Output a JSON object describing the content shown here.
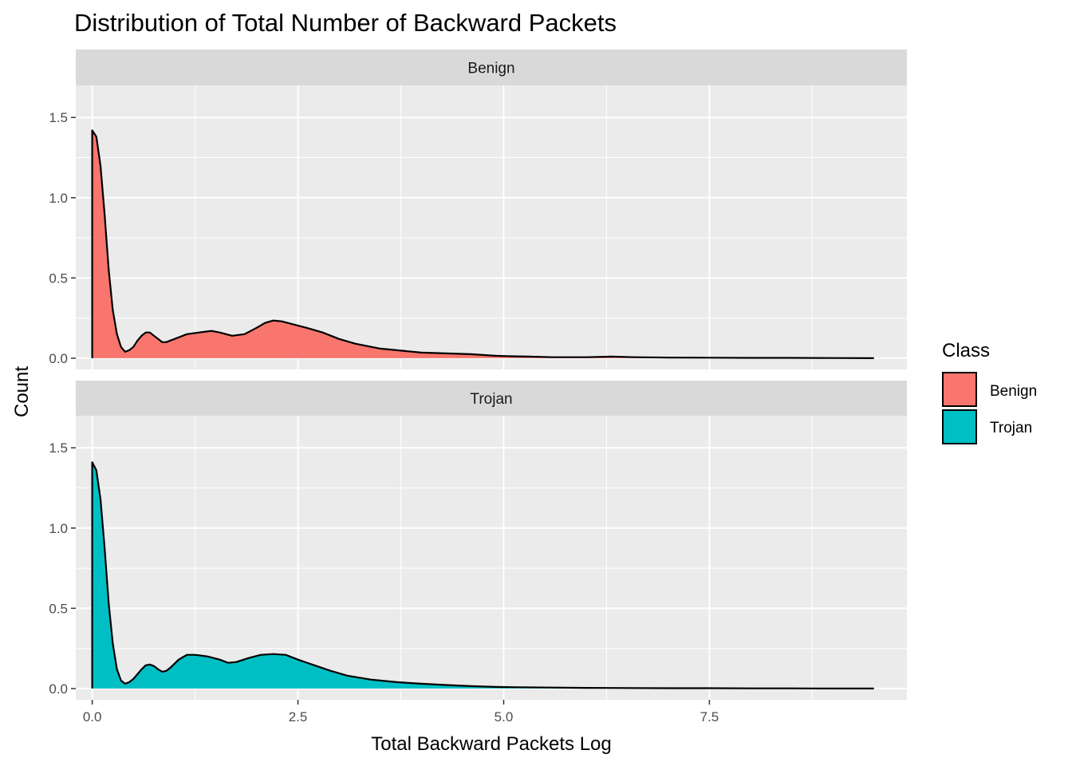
{
  "chart_data": {
    "type": "area",
    "title": "Distribution of Total Number of Backward Packets",
    "xlabel": "Total Backward Packets Log",
    "ylabel": "Count",
    "xlim": [
      -0.2,
      9.9
    ],
    "ylim": [
      -0.07,
      1.7
    ],
    "x_ticks": [
      0,
      2.5,
      5,
      7.5
    ],
    "x_tick_labels": [
      "0.0",
      "2.5",
      "5.0",
      "7.5"
    ],
    "y_ticks": [
      0,
      0.5,
      1,
      1.5
    ],
    "y_tick_labels": [
      "0.0",
      "0.5",
      "1.0",
      "1.5"
    ],
    "grid": true,
    "legend": {
      "title": "Class",
      "placement": "right",
      "entries": [
        {
          "label": "Benign",
          "color": "#F8766D"
        },
        {
          "label": "Trojan",
          "color": "#00BFC4"
        }
      ]
    },
    "panels": [
      {
        "strip": "Benign",
        "color": "#F8766D",
        "points": [
          [
            0,
            1.42
          ],
          [
            0.05,
            1.38
          ],
          [
            0.1,
            1.2
          ],
          [
            0.15,
            0.9
          ],
          [
            0.2,
            0.55
          ],
          [
            0.25,
            0.3
          ],
          [
            0.3,
            0.15
          ],
          [
            0.35,
            0.07
          ],
          [
            0.4,
            0.04
          ],
          [
            0.45,
            0.05
          ],
          [
            0.5,
            0.07
          ],
          [
            0.55,
            0.11
          ],
          [
            0.6,
            0.14
          ],
          [
            0.65,
            0.16
          ],
          [
            0.7,
            0.16
          ],
          [
            0.75,
            0.14
          ],
          [
            0.8,
            0.12
          ],
          [
            0.85,
            0.1
          ],
          [
            0.9,
            0.1
          ],
          [
            0.95,
            0.11
          ],
          [
            1.05,
            0.13
          ],
          [
            1.15,
            0.15
          ],
          [
            1.3,
            0.16
          ],
          [
            1.45,
            0.17
          ],
          [
            1.55,
            0.16
          ],
          [
            1.7,
            0.14
          ],
          [
            1.85,
            0.15
          ],
          [
            2.0,
            0.19
          ],
          [
            2.1,
            0.22
          ],
          [
            2.2,
            0.235
          ],
          [
            2.3,
            0.23
          ],
          [
            2.45,
            0.21
          ],
          [
            2.6,
            0.19
          ],
          [
            2.8,
            0.16
          ],
          [
            3.0,
            0.12
          ],
          [
            3.2,
            0.09
          ],
          [
            3.5,
            0.06
          ],
          [
            3.8,
            0.045
          ],
          [
            4.0,
            0.035
          ],
          [
            4.3,
            0.03
          ],
          [
            4.6,
            0.025
          ],
          [
            4.9,
            0.015
          ],
          [
            5.1,
            0.012
          ],
          [
            5.3,
            0.01
          ],
          [
            5.6,
            0.006
          ],
          [
            6.0,
            0.006
          ],
          [
            6.3,
            0.01
          ],
          [
            6.6,
            0.006
          ],
          [
            7.0,
            0.004
          ],
          [
            7.5,
            0.003
          ],
          [
            8.0,
            0.002
          ],
          [
            8.5,
            0.002
          ],
          [
            9.0,
            0.001
          ],
          [
            9.5,
            0.0
          ]
        ]
      },
      {
        "strip": "Trojan",
        "color": "#00BFC4",
        "points": [
          [
            0,
            1.41
          ],
          [
            0.05,
            1.36
          ],
          [
            0.1,
            1.18
          ],
          [
            0.15,
            0.88
          ],
          [
            0.2,
            0.53
          ],
          [
            0.25,
            0.28
          ],
          [
            0.3,
            0.12
          ],
          [
            0.35,
            0.05
          ],
          [
            0.4,
            0.03
          ],
          [
            0.45,
            0.04
          ],
          [
            0.5,
            0.06
          ],
          [
            0.55,
            0.09
          ],
          [
            0.6,
            0.12
          ],
          [
            0.65,
            0.145
          ],
          [
            0.7,
            0.15
          ],
          [
            0.75,
            0.14
          ],
          [
            0.8,
            0.12
          ],
          [
            0.85,
            0.105
          ],
          [
            0.9,
            0.11
          ],
          [
            0.95,
            0.13
          ],
          [
            1.05,
            0.18
          ],
          [
            1.15,
            0.21
          ],
          [
            1.25,
            0.21
          ],
          [
            1.4,
            0.2
          ],
          [
            1.55,
            0.18
          ],
          [
            1.65,
            0.16
          ],
          [
            1.75,
            0.165
          ],
          [
            1.9,
            0.19
          ],
          [
            2.05,
            0.21
          ],
          [
            2.2,
            0.215
          ],
          [
            2.35,
            0.21
          ],
          [
            2.5,
            0.18
          ],
          [
            2.7,
            0.145
          ],
          [
            2.9,
            0.11
          ],
          [
            3.1,
            0.08
          ],
          [
            3.4,
            0.055
          ],
          [
            3.7,
            0.04
          ],
          [
            4.0,
            0.03
          ],
          [
            4.3,
            0.022
          ],
          [
            4.6,
            0.015
          ],
          [
            4.9,
            0.01
          ],
          [
            5.2,
            0.008
          ],
          [
            5.6,
            0.006
          ],
          [
            6.0,
            0.004
          ],
          [
            6.5,
            0.003
          ],
          [
            7.0,
            0.002
          ],
          [
            7.5,
            0.002
          ],
          [
            8.0,
            0.001
          ],
          [
            8.5,
            0.001
          ],
          [
            9.0,
            0.0
          ],
          [
            9.5,
            0.0
          ]
        ]
      }
    ]
  }
}
